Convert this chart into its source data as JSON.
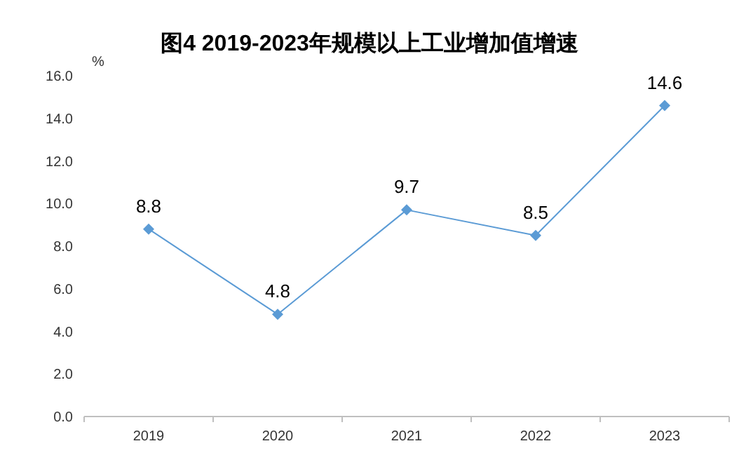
{
  "chart_data": {
    "type": "line",
    "title": "图4 2019-2023年规模以上工业增加值增速",
    "ylabel": "%",
    "categories": [
      "2019",
      "2020",
      "2021",
      "2022",
      "2023"
    ],
    "series": [
      {
        "color": "#5b9bd5",
        "values": [
          8.8,
          4.8,
          9.7,
          8.5,
          14.6
        ]
      }
    ],
    "ylim": [
      0,
      16
    ],
    "yticks": [
      {
        "value": 0,
        "label": "0.0"
      },
      {
        "value": 2,
        "label": "2.0"
      },
      {
        "value": 4,
        "label": "4.0"
      },
      {
        "value": 6,
        "label": "6.0"
      },
      {
        "value": 8,
        "label": "8.0"
      },
      {
        "value": 10,
        "label": "10.0"
      },
      {
        "value": 12,
        "label": "12.0"
      },
      {
        "value": 14,
        "label": "14.0"
      },
      {
        "value": 16,
        "label": "16.0"
      }
    ],
    "data_labels": true,
    "marker": "diamond",
    "line_style": "solid"
  }
}
